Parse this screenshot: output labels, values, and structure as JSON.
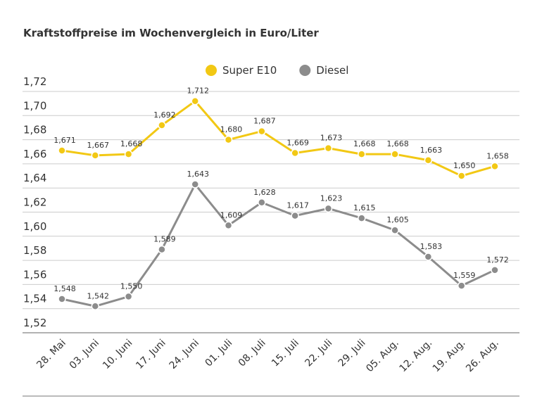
{
  "chart_data": {
    "type": "line",
    "title": "Kraftstoffpreise im Wochenvergleich in Euro/Liter",
    "categories": [
      "28. Mai",
      "03. Juni",
      "10. Juni",
      "17. Juni",
      "24. Juni",
      "01. Juli",
      "08. Juli",
      "15. Juli",
      "22. Juli",
      "29. Juli",
      "05. Aug.",
      "12. Aug.",
      "19. Aug.",
      "26. Aug."
    ],
    "series": [
      {
        "name": "Super E10",
        "color": "#f2c814",
        "values": [
          1.671,
          1.667,
          1.668,
          1.692,
          1.712,
          1.68,
          1.687,
          1.669,
          1.673,
          1.668,
          1.668,
          1.663,
          1.65,
          1.658
        ],
        "value_labels": [
          "1,671",
          "1,667",
          "1,668",
          "1,692",
          "1,712",
          "1,680",
          "1,687",
          "1,669",
          "1,673",
          "1,668",
          "1,668",
          "1,663",
          "1,650",
          "1,658"
        ]
      },
      {
        "name": "Diesel",
        "color": "#8c8c8c",
        "values": [
          1.548,
          1.542,
          1.55,
          1.589,
          1.643,
          1.609,
          1.628,
          1.617,
          1.623,
          1.615,
          1.605,
          1.583,
          1.559,
          1.572
        ],
        "value_labels": [
          "1,548",
          "1,542",
          "1,550",
          "1,589",
          "1,643",
          "1,609",
          "1,628",
          "1,617",
          "1,623",
          "1,615",
          "1,605",
          "1,583",
          "1,559",
          "1,572"
        ]
      }
    ],
    "ylim": [
      1.52,
      1.72
    ],
    "yticks": [
      {
        "value": 1.52,
        "label": "1,52"
      },
      {
        "value": 1.54,
        "label": "1,54"
      },
      {
        "value": 1.56,
        "label": "1,56"
      },
      {
        "value": 1.58,
        "label": "1,58"
      },
      {
        "value": 1.6,
        "label": "1,60"
      },
      {
        "value": 1.62,
        "label": "1,62"
      },
      {
        "value": 1.64,
        "label": "1,64"
      },
      {
        "value": 1.66,
        "label": "1,66"
      },
      {
        "value": 1.68,
        "label": "1,68"
      },
      {
        "value": 1.7,
        "label": "1,70"
      },
      {
        "value": 1.72,
        "label": "1,72"
      }
    ],
    "grid": true,
    "legend": "top"
  }
}
